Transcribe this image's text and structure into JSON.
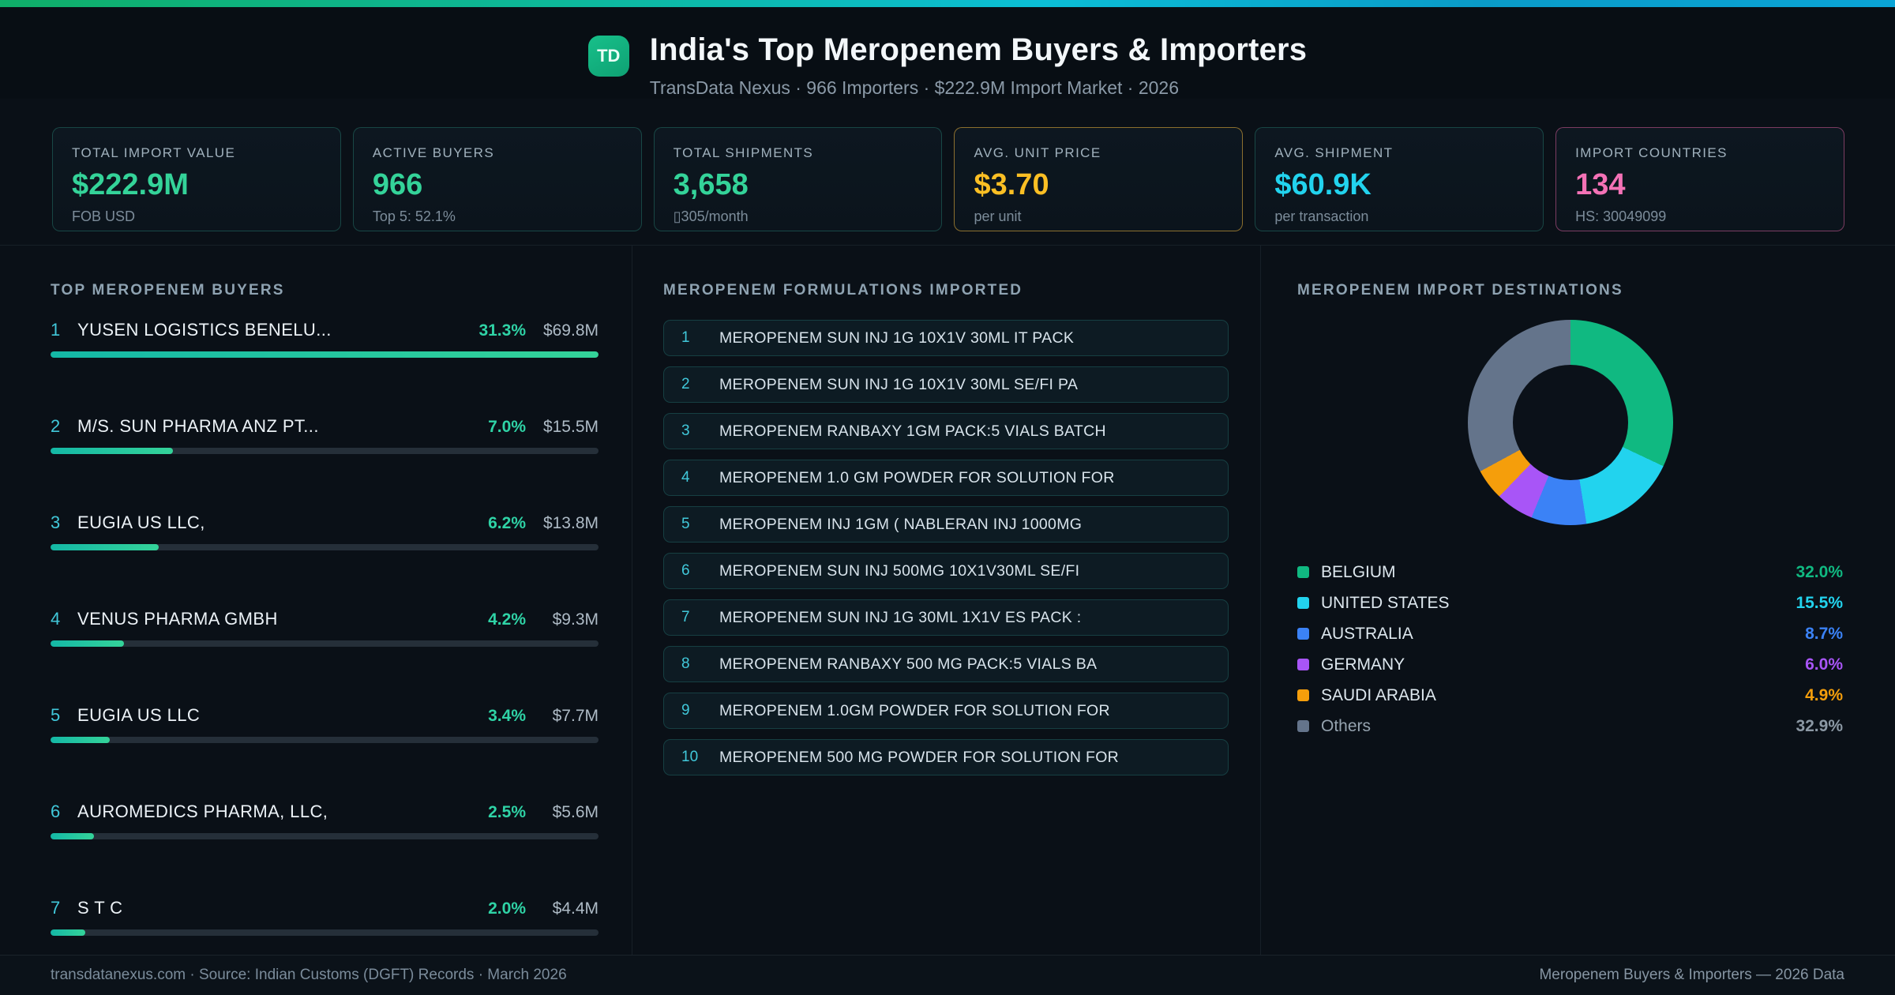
{
  "header": {
    "logo": "TD",
    "title": "India's Top Meropenem Buyers & Importers",
    "subtitle": "TransData Nexus · 966 Importers · $222.9M Import Market · 2026"
  },
  "stats": [
    {
      "id": "total-import-value",
      "label": "TOTAL IMPORT VALUE",
      "value": "$222.9M",
      "sub": "FOB USD",
      "color": "#34d399",
      "border": "rgba(61,214,181,0.26)"
    },
    {
      "id": "active-buyers",
      "label": "ACTIVE BUYERS",
      "value": "966",
      "sub": "Top 5: 52.1%",
      "color": "#34d399",
      "border": "rgba(61,214,181,0.26)"
    },
    {
      "id": "total-shipments",
      "label": "TOTAL SHIPMENTS",
      "value": "3,658",
      "sub": "▯305/month",
      "color": "#34d399",
      "border": "rgba(61,214,181,0.26)"
    },
    {
      "id": "avg-unit-price",
      "label": "AVG. UNIT PRICE",
      "value": "$3.70",
      "sub": "per unit",
      "color": "#fbbf24",
      "border": "rgba(245,186,60,0.55)"
    },
    {
      "id": "avg-shipment",
      "label": "AVG. SHIPMENT",
      "value": "$60.9K",
      "sub": "per transaction",
      "color": "#22d3ee",
      "border": "rgba(61,214,181,0.26)"
    },
    {
      "id": "import-countries",
      "label": "IMPORT COUNTRIES",
      "value": "134",
      "sub": "HS: 30049099",
      "color": "#f472b6",
      "border": "rgba(236,100,166,0.5)"
    }
  ],
  "buyers": {
    "section_title": "TOP MEROPENEM BUYERS",
    "items": [
      {
        "rank": "1",
        "name": "YUSEN LOGISTICS BENELU...",
        "share": 31.3,
        "share_label": "31.3%",
        "value": "$69.8M"
      },
      {
        "rank": "2",
        "name": "M/S. SUN PHARMA ANZ PT...",
        "share": 7.0,
        "share_label": "7.0%",
        "value": "$15.5M"
      },
      {
        "rank": "3",
        "name": "EUGIA US LLC,",
        "share": 6.2,
        "share_label": "6.2%",
        "value": "$13.8M"
      },
      {
        "rank": "4",
        "name": "VENUS PHARMA GMBH",
        "share": 4.2,
        "share_label": "4.2%",
        "value": "$9.3M"
      },
      {
        "rank": "5",
        "name": "EUGIA US LLC",
        "share": 3.4,
        "share_label": "3.4%",
        "value": "$7.7M"
      },
      {
        "rank": "6",
        "name": "AUROMEDICS PHARMA, LLC,",
        "share": 2.5,
        "share_label": "2.5%",
        "value": "$5.6M"
      },
      {
        "rank": "7",
        "name": "S T C",
        "share": 2.0,
        "share_label": "2.0%",
        "value": "$4.4M"
      }
    ]
  },
  "formulations": {
    "section_title": "MEROPENEM FORMULATIONS IMPORTED",
    "items": [
      {
        "rank": "1",
        "text": "MEROPENEM SUN INJ 1G 10X1V 30ML IT PACK"
      },
      {
        "rank": "2",
        "text": "MEROPENEM SUN INJ 1G 10X1V 30ML SE/FI PA"
      },
      {
        "rank": "3",
        "text": "MEROPENEM RANBAXY 1GM PACK:5 VIALS BATCH"
      },
      {
        "rank": "4",
        "text": "MEROPENEM 1.0 GM POWDER FOR SOLUTION FOR"
      },
      {
        "rank": "5",
        "text": "MEROPENEM INJ 1GM ( NABLERAN INJ 1000MG"
      },
      {
        "rank": "6",
        "text": "MEROPENEM SUN INJ 500MG 10X1V30ML SE/FI"
      },
      {
        "rank": "7",
        "text": "MEROPENEM SUN INJ 1G 30ML 1X1V ES PACK :"
      },
      {
        "rank": "8",
        "text": "MEROPENEM RANBAXY 500 MG PACK:5 VIALS BA"
      },
      {
        "rank": "9",
        "text": "MEROPENEM 1.0GM POWDER FOR SOLUTION FOR"
      },
      {
        "rank": "10",
        "text": "MEROPENEM 500 MG POWDER FOR SOLUTION FOR"
      }
    ]
  },
  "destinations": {
    "section_title": "MEROPENEM IMPORT DESTINATIONS"
  },
  "chart_data": {
    "type": "pie",
    "title": "MEROPENEM IMPORT DESTINATIONS",
    "donut": true,
    "labels": [
      "BELGIUM",
      "UNITED STATES",
      "AUSTRALIA",
      "GERMANY",
      "SAUDI ARABIA",
      "Others"
    ],
    "values": [
      32.0,
      15.5,
      8.7,
      6.0,
      4.9,
      32.9
    ],
    "colors": [
      "#10b981",
      "#22d3ee",
      "#3b82f6",
      "#a855f7",
      "#f59e0b",
      "#64748b"
    ],
    "legend_position": "bottom"
  },
  "footer": {
    "left": "transdatanexus.com · Source: Indian Customs (DGFT) Records · March 2026",
    "right": "Meropenem Buyers & Importers — 2026 Data"
  }
}
